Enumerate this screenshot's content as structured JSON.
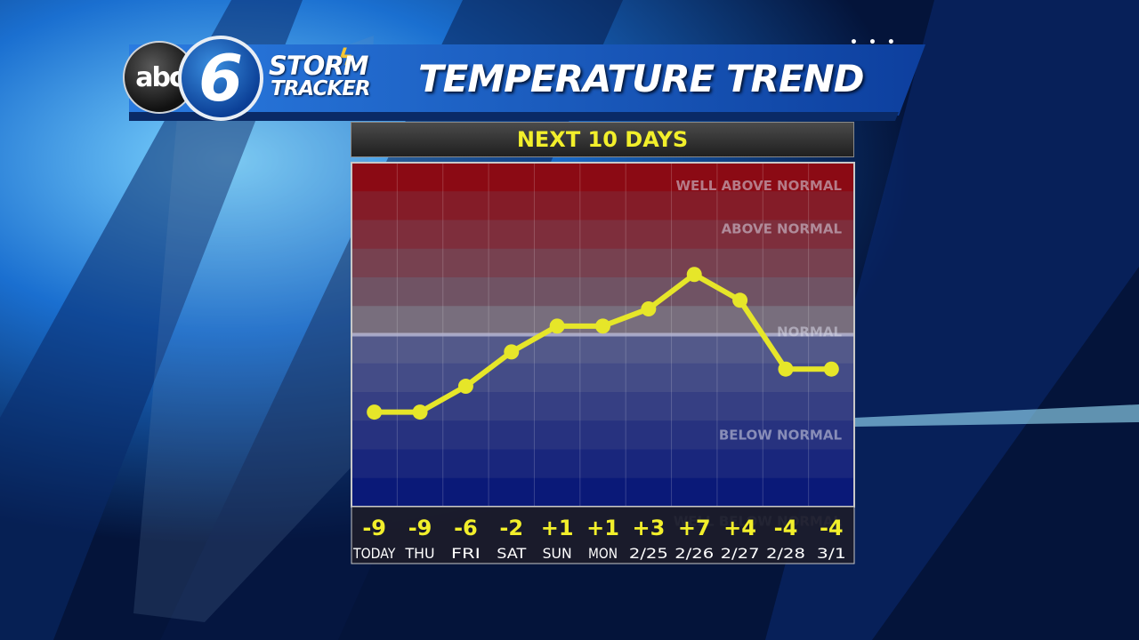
{
  "header": {
    "logo_abc": "abc",
    "logo_six": "6",
    "brand_line1": "STORM",
    "brand_line2": "TRACKER",
    "title": "TEMPERATURE TREND",
    "subtitle": "NEXT 10 DAYS"
  },
  "chart_data": {
    "type": "line",
    "title": "TEMPERATURE TREND",
    "subtitle": "NEXT 10 DAYS",
    "categories": [
      "TODAY",
      "THU",
      "FRI",
      "SAT",
      "SUN",
      "MON",
      "2/25",
      "2/26",
      "2/27",
      "2/28",
      "3/1"
    ],
    "value_labels": [
      "-9",
      "-9",
      "-6",
      "-2",
      "+1",
      "+1",
      "+3",
      "+7",
      "+4",
      "-4",
      "-4"
    ],
    "series": [
      {
        "values": [
          -9,
          -9,
          -6,
          -2,
          1,
          1,
          3,
          7,
          4,
          -4,
          -4
        ]
      }
    ],
    "ylim": [
      -20,
      20
    ],
    "band_labels": [
      "WELL ABOVE NORMAL",
      "ABOVE NORMAL",
      "NORMAL",
      "BELOW NORMAL",
      "WELL BELOW NORMAL"
    ],
    "grid": true,
    "colors": {
      "line": "#e6e629",
      "above": "#8b0a14",
      "below": "#0d1e7a",
      "normal_line": "#b9b9d6",
      "value_text": "#f2ef2b"
    }
  }
}
